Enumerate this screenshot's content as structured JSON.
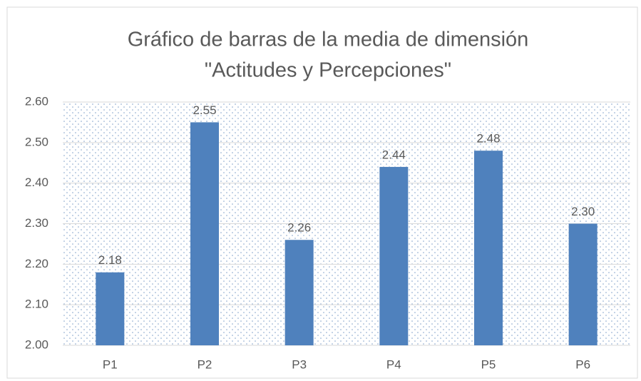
{
  "chart_data": {
    "type": "bar",
    "title": [
      "Gráfico de barras de la media de dimensión",
      "\"Actitudes y Percepciones\""
    ],
    "categories": [
      "P1",
      "P2",
      "P3",
      "P4",
      "P5",
      "P6"
    ],
    "values": [
      2.18,
      2.55,
      2.26,
      2.44,
      2.48,
      2.3
    ],
    "value_labels": [
      "2.18",
      "2.55",
      "2.26",
      "2.44",
      "2.48",
      "2.30"
    ],
    "color": "#4f81bd",
    "ylim": [
      2.0,
      2.6
    ],
    "yticks": [
      {
        "value": 2.0,
        "label": "2.00"
      },
      {
        "value": 2.1,
        "label": "2.10"
      },
      {
        "value": 2.2,
        "label": "2.20"
      },
      {
        "value": 2.3,
        "label": "2.30"
      },
      {
        "value": 2.4,
        "label": "2.40"
      },
      {
        "value": 2.5,
        "label": "2.50"
      },
      {
        "value": 2.6,
        "label": "2.60"
      }
    ],
    "grid": true
  }
}
